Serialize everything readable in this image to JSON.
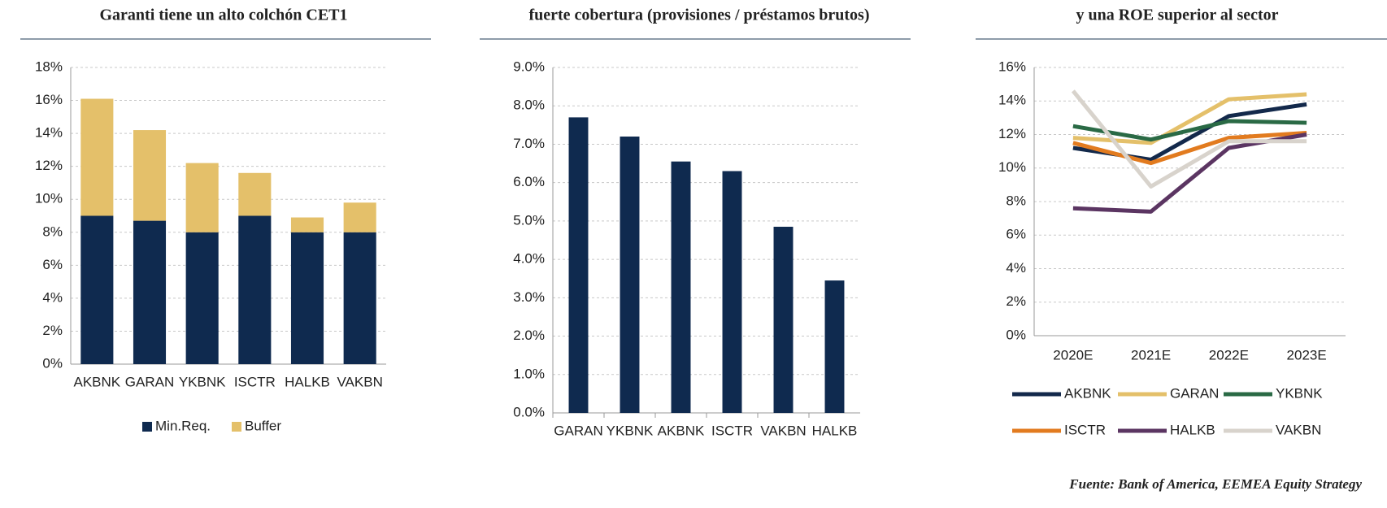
{
  "chart_data": [
    {
      "type": "bar",
      "stacked": true,
      "title": "Garanti tiene un alto colchón CET1",
      "categories": [
        "AKBNK",
        "GARAN",
        "YKBNK",
        "ISCTR",
        "HALKB",
        "VAKBN"
      ],
      "series": [
        {
          "name": "Min.Req.",
          "color": "#0f2a4f",
          "values": [
            9.0,
            8.7,
            8.0,
            9.0,
            8.0,
            8.0
          ]
        },
        {
          "name": "Buffer",
          "color": "#e4c06a",
          "values": [
            7.1,
            5.5,
            4.2,
            2.6,
            0.9,
            1.8
          ]
        }
      ],
      "ylim": [
        0,
        18
      ],
      "yticks": [
        {
          "value": 0,
          "label": "0%"
        },
        {
          "value": 2,
          "label": "2%"
        },
        {
          "value": 4,
          "label": "4%"
        },
        {
          "value": 6,
          "label": "6%"
        },
        {
          "value": 8,
          "label": "8%"
        },
        {
          "value": 10,
          "label": "10%"
        },
        {
          "value": 12,
          "label": "12%"
        },
        {
          "value": 14,
          "label": "14%"
        },
        {
          "value": 16,
          "label": "16%"
        },
        {
          "value": 18,
          "label": "18%"
        }
      ],
      "grid": true,
      "legend": "bottom"
    },
    {
      "type": "bar",
      "title": "fuerte cobertura (provisiones / préstamos brutos)",
      "categories": [
        "GARAN",
        "YKBNK",
        "AKBNK",
        "ISCTR",
        "VAKBN",
        "HALKB"
      ],
      "values": [
        7.7,
        7.2,
        6.55,
        6.3,
        4.85,
        3.45
      ],
      "color": "#0f2a4f",
      "ylim": [
        0,
        9
      ],
      "yticks": [
        {
          "value": 0,
          "label": "0.0%"
        },
        {
          "value": 1,
          "label": "1.0%"
        },
        {
          "value": 2,
          "label": "2.0%"
        },
        {
          "value": 3,
          "label": "3.0%"
        },
        {
          "value": 4,
          "label": "4.0%"
        },
        {
          "value": 5,
          "label": "5.0%"
        },
        {
          "value": 6,
          "label": "6.0%"
        },
        {
          "value": 7,
          "label": "7.0%"
        },
        {
          "value": 8,
          "label": "8.0%"
        },
        {
          "value": 9,
          "label": "9.0%"
        }
      ],
      "grid": true
    },
    {
      "type": "line",
      "title": "y una ROE superior al sector",
      "categories": [
        "2020E",
        "2021E",
        "2022E",
        "2023E"
      ],
      "series": [
        {
          "name": "AKBNK",
          "color": "#13294b",
          "values": [
            11.2,
            10.5,
            13.1,
            13.8
          ]
        },
        {
          "name": "GARAN",
          "color": "#e4c06a",
          "values": [
            11.8,
            11.5,
            14.1,
            14.4
          ]
        },
        {
          "name": "YKBNK",
          "color": "#2a6a45",
          "values": [
            12.5,
            11.7,
            12.8,
            12.7
          ]
        },
        {
          "name": "ISCTR",
          "color": "#e27b1f",
          "values": [
            11.5,
            10.3,
            11.8,
            12.1
          ]
        },
        {
          "name": "HALKB",
          "color": "#5b3562",
          "values": [
            7.6,
            7.4,
            11.2,
            12.0
          ]
        },
        {
          "name": "VAKBN",
          "color": "#d8d3cc",
          "values": [
            14.6,
            8.9,
            11.6,
            11.6
          ]
        }
      ],
      "ylim": [
        0,
        16
      ],
      "yticks": [
        {
          "value": 0,
          "label": "0%"
        },
        {
          "value": 2,
          "label": "2%"
        },
        {
          "value": 4,
          "label": "4%"
        },
        {
          "value": 6,
          "label": "6%"
        },
        {
          "value": 8,
          "label": "8%"
        },
        {
          "value": 10,
          "label": "10%"
        },
        {
          "value": 12,
          "label": "12%"
        },
        {
          "value": 14,
          "label": "14%"
        },
        {
          "value": 16,
          "label": "16%"
        }
      ],
      "grid": true,
      "legend": "bottom"
    }
  ],
  "source": "Fuente: Bank of America, EEMEA Equity Strategy"
}
